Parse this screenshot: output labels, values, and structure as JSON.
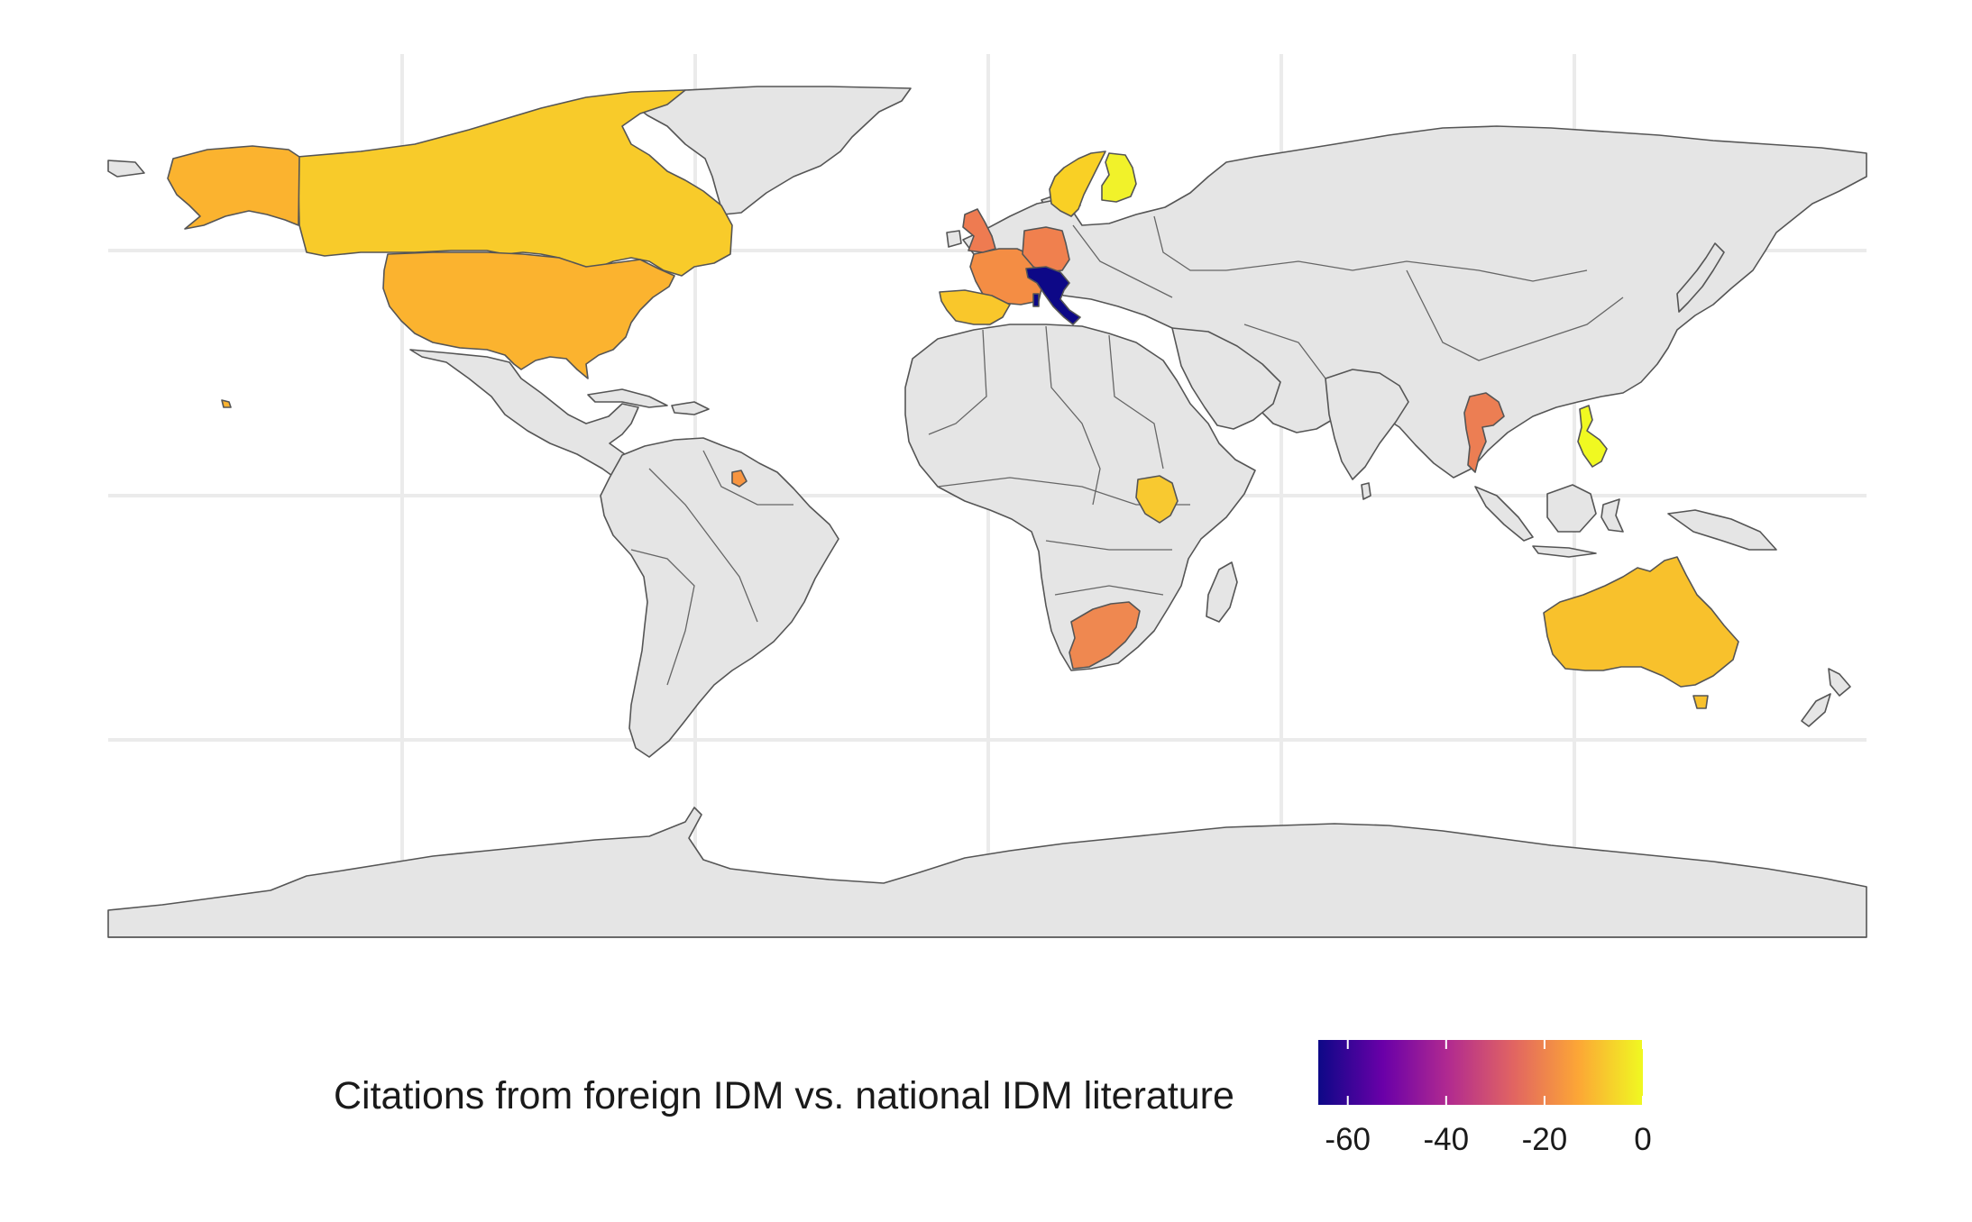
{
  "map": {
    "type": "choropleth",
    "basemap": "world",
    "missing_color": "#e5e5e5",
    "border_color": "#555555",
    "grid": true,
    "countries": [
      {
        "name": "Italy",
        "value": -66,
        "color": "#0d0887"
      },
      {
        "name": "United Kingdom",
        "value": -22,
        "color": "#ee7b51"
      },
      {
        "name": "Germany",
        "value": -22,
        "color": "#f0804e"
      },
      {
        "name": "France",
        "value": -17,
        "color": "#f48d44"
      },
      {
        "name": "Spain",
        "value": -5,
        "color": "#f9c72b"
      },
      {
        "name": "Sweden",
        "value": -5,
        "color": "#f9d025"
      },
      {
        "name": "Finland",
        "value": -1,
        "color": "#f1f22a"
      },
      {
        "name": "Canada",
        "value": -8,
        "color": "#f8cb2a"
      },
      {
        "name": "United States",
        "value": -12,
        "color": "#fbb32f"
      },
      {
        "name": "French Guiana",
        "value": -17,
        "color": "#f89540"
      },
      {
        "name": "South Africa",
        "value": -22,
        "color": "#ef8850"
      },
      {
        "name": "Kenya",
        "value": -6,
        "color": "#f8c930"
      },
      {
        "name": "Thailand",
        "value": -22,
        "color": "#ec7e53"
      },
      {
        "name": "Philippines",
        "value": -1,
        "color": "#f0f921"
      },
      {
        "name": "Australia",
        "value": -9,
        "color": "#f8c12c"
      }
    ]
  },
  "legend": {
    "title": "Citations from foreign IDM vs. national IDM literature",
    "ticks": [
      "-60",
      "-40",
      "-20",
      "0"
    ],
    "tick_values": [
      -60,
      -40,
      -20,
      0
    ],
    "range": [
      -66,
      0
    ],
    "palette": [
      "#0d0887",
      "#6a00a8",
      "#b12a90",
      "#e16462",
      "#fca636",
      "#f0f921"
    ]
  }
}
